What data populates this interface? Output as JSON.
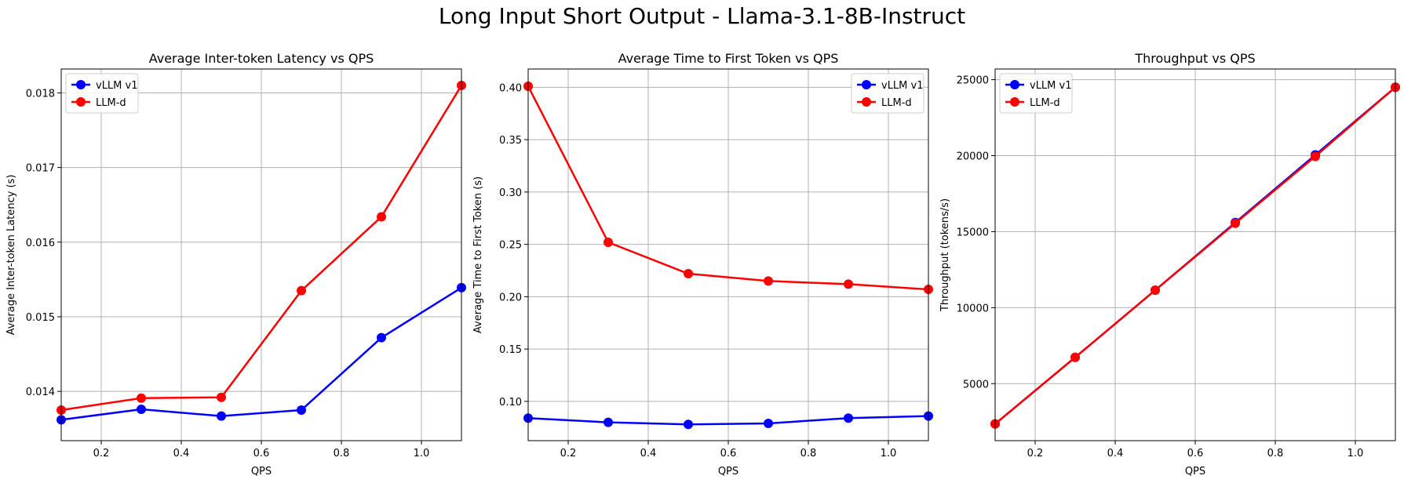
{
  "figure": {
    "title": "Long Input Short Output - Llama-3.1-8B-Instruct"
  },
  "colors": {
    "vllm": "#0000ff",
    "llmd": "#ff0000",
    "grid": "#b0b0b0",
    "axis": "#000000"
  },
  "chart_data": [
    {
      "type": "line",
      "title": "Average Inter-token Latency vs QPS",
      "xlabel": "QPS",
      "ylabel": "Average Inter-token Latency (s)",
      "xlim": [
        0.1,
        1.1
      ],
      "ylim": [
        0.01334,
        0.01832
      ],
      "xticks": [
        0.2,
        0.4,
        0.6,
        0.8,
        1.0
      ],
      "xtick_labels": [
        "0.2",
        "0.4",
        "0.6",
        "0.8",
        "1.0"
      ],
      "yticks": [
        0.014,
        0.015,
        0.016,
        0.017,
        0.018
      ],
      "ytick_labels": [
        "0.014",
        "0.015",
        "0.016",
        "0.017",
        "0.018"
      ],
      "legend_position": "top-left",
      "grid": true,
      "x": [
        0.1,
        0.3,
        0.5,
        0.7,
        0.9,
        1.1
      ],
      "series": [
        {
          "name": "vLLM v1",
          "color": "#0000ff",
          "values": [
            0.01362,
            0.01376,
            0.01367,
            0.01375,
            0.01472,
            0.01539
          ]
        },
        {
          "name": "LLM-d",
          "color": "#ff0000",
          "values": [
            0.01375,
            0.01391,
            0.01392,
            0.01535,
            0.01634,
            0.0181
          ]
        }
      ]
    },
    {
      "type": "line",
      "title": "Average Time to First Token vs QPS",
      "xlabel": "QPS",
      "ylabel": "Average Time to First Token (s)",
      "xlim": [
        0.1,
        1.1
      ],
      "ylim": [
        0.0625,
        0.4175
      ],
      "xticks": [
        0.2,
        0.4,
        0.6,
        0.8,
        1.0
      ],
      "xtick_labels": [
        "0.2",
        "0.4",
        "0.6",
        "0.8",
        "1.0"
      ],
      "yticks": [
        0.1,
        0.15,
        0.2,
        0.25,
        0.3,
        0.35,
        0.4
      ],
      "ytick_labels": [
        "0.10",
        "0.15",
        "0.20",
        "0.25",
        "0.30",
        "0.35",
        "0.40"
      ],
      "legend_position": "top-right",
      "grid": true,
      "x": [
        0.1,
        0.3,
        0.5,
        0.7,
        0.9,
        1.1
      ],
      "series": [
        {
          "name": "vLLM v1",
          "color": "#0000ff",
          "values": [
            0.084,
            0.08,
            0.078,
            0.079,
            0.084,
            0.086
          ]
        },
        {
          "name": "LLM-d",
          "color": "#ff0000",
          "values": [
            0.401,
            0.252,
            0.222,
            0.215,
            0.212,
            0.207
          ]
        }
      ]
    },
    {
      "type": "line",
      "title": "Throughput vs QPS",
      "xlabel": "QPS",
      "ylabel": "Throughput (tokens/s)",
      "xlim": [
        0.1,
        1.1
      ],
      "ylim": [
        1250,
        25700
      ],
      "xticks": [
        0.2,
        0.4,
        0.6,
        0.8,
        1.0
      ],
      "xtick_labels": [
        "0.2",
        "0.4",
        "0.6",
        "0.8",
        "1.0"
      ],
      "yticks": [
        5000,
        10000,
        15000,
        20000,
        25000
      ],
      "ytick_labels": [
        "5000",
        "10000",
        "15000",
        "20000",
        "25000"
      ],
      "legend_position": "top-left",
      "grid": true,
      "x": [
        0.1,
        0.3,
        0.5,
        0.7,
        0.9,
        1.1
      ],
      "series": [
        {
          "name": "vLLM v1",
          "color": "#0000ff",
          "values": [
            2350,
            6730,
            11150,
            15600,
            20050,
            24500
          ]
        },
        {
          "name": "LLM-d",
          "color": "#ff0000",
          "values": [
            2350,
            6730,
            11150,
            15550,
            19950,
            24500
          ]
        }
      ]
    }
  ]
}
